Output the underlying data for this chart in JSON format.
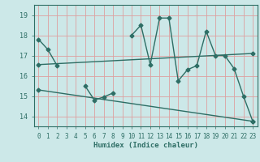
{
  "title": "",
  "xlabel": "Humidex (Indice chaleur)",
  "bg_color": "#cce8e8",
  "grid_color": "#dda0a0",
  "line_color": "#2e6e65",
  "xlim": [
    -0.5,
    23.5
  ],
  "ylim": [
    13.5,
    19.5
  ],
  "yticks": [
    14,
    15,
    16,
    17,
    18,
    19
  ],
  "xticks": [
    0,
    1,
    2,
    3,
    4,
    5,
    6,
    7,
    8,
    9,
    10,
    11,
    12,
    13,
    14,
    15,
    16,
    17,
    18,
    19,
    20,
    21,
    22,
    23
  ],
  "line1_x": [
    0,
    1,
    2,
    3,
    4,
    5,
    6,
    7,
    8,
    9,
    10,
    11,
    12,
    13,
    14,
    15,
    16,
    17,
    18,
    19,
    20,
    21,
    22,
    23
  ],
  "line1_y": [
    17.8,
    17.3,
    16.5,
    null,
    null,
    15.5,
    14.8,
    14.95,
    15.15,
    null,
    18.0,
    18.5,
    16.55,
    18.85,
    18.85,
    15.75,
    16.3,
    16.5,
    18.2,
    17.0,
    17.0,
    16.35,
    15.0,
    13.75
  ],
  "line2_x": [
    0,
    23
  ],
  "line2_y": [
    16.55,
    17.1
  ],
  "line3_x": [
    0,
    23
  ],
  "line3_y": [
    15.3,
    13.75
  ],
  "markersize": 2.5,
  "linewidth": 1.0
}
